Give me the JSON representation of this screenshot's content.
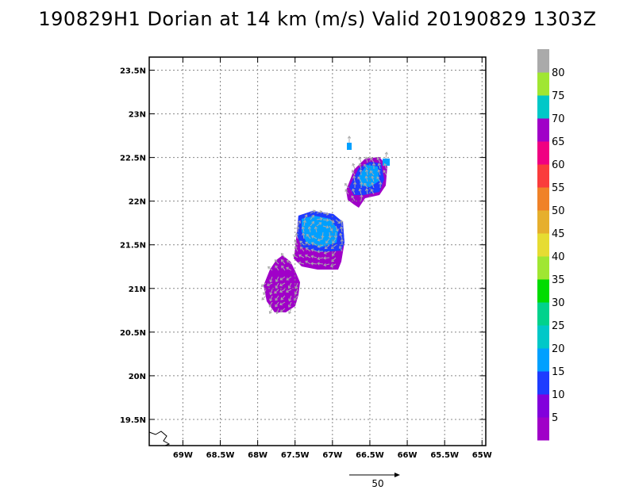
{
  "title": "190829H1 Dorian at 14 km (m/s) Valid 20190829 1303Z",
  "map": {
    "lon_range": [
      -69.45,
      -64.95
    ],
    "lat_range": [
      19.2,
      23.65
    ],
    "lat_ticks": [
      {
        "value": 23.5,
        "label": "23.5N"
      },
      {
        "value": 23.0,
        "label": "23N"
      },
      {
        "value": 22.5,
        "label": "22.5N"
      },
      {
        "value": 22.0,
        "label": "22N"
      },
      {
        "value": 21.5,
        "label": "21.5N"
      },
      {
        "value": 21.0,
        "label": "21N"
      },
      {
        "value": 20.5,
        "label": "20.5N"
      },
      {
        "value": 20.0,
        "label": "20N"
      },
      {
        "value": 19.5,
        "label": "19.5N"
      }
    ],
    "lon_ticks": [
      {
        "value": -69.0,
        "label": "69W"
      },
      {
        "value": -68.5,
        "label": "68.5W"
      },
      {
        "value": -68.0,
        "label": "68W"
      },
      {
        "value": -67.5,
        "label": "67.5W"
      },
      {
        "value": -67.0,
        "label": "67W"
      },
      {
        "value": -66.5,
        "label": "66.5W"
      },
      {
        "value": -66.0,
        "label": "66W"
      },
      {
        "value": -65.5,
        "label": "65.5W"
      },
      {
        "value": -65.0,
        "label": "65W"
      }
    ],
    "grid": true
  },
  "colorbar": {
    "colors": [
      "#a000c8",
      "#8200dc",
      "#1e3cff",
      "#00a0ff",
      "#00c8c8",
      "#00d28c",
      "#00dc00",
      "#a0e632",
      "#e6dc32",
      "#e6af2d",
      "#f08228",
      "#fa3c3c",
      "#f00082",
      "#a000c8",
      "#00c8c8",
      "#a0e632",
      "#aaaaaa"
    ],
    "labels": [
      "5",
      "10",
      "15",
      "20",
      "25",
      "30",
      "35",
      "40",
      "45",
      "50",
      "55",
      "60",
      "65",
      "70",
      "75",
      "80"
    ]
  },
  "scale_vector": {
    "label": "50"
  },
  "colors": {
    "purple": "#a000c8",
    "blue": "#1e3cff",
    "light_blue": "#00a0ff",
    "cyan": "#00c8c8",
    "arrow_gray": "#aaaaaa"
  }
}
